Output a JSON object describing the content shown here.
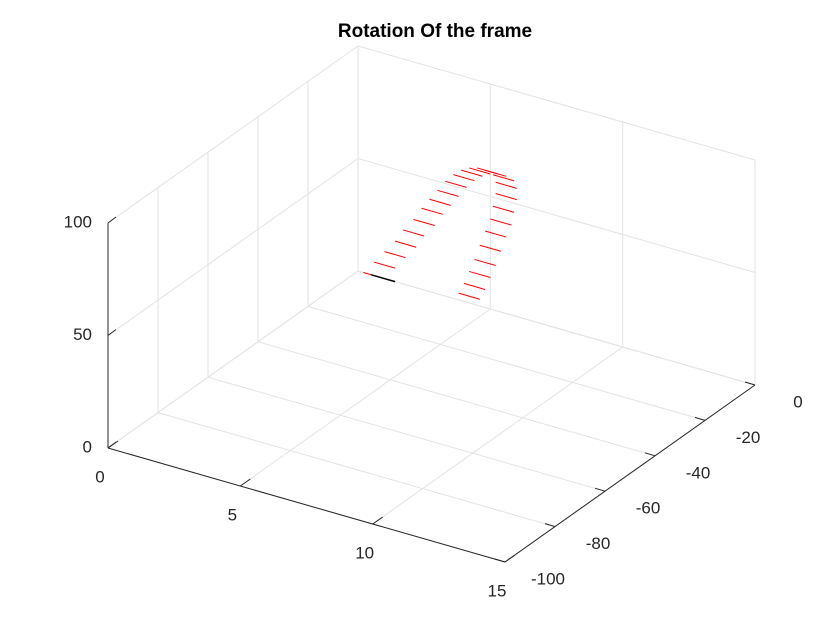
{
  "chart_data": {
    "type": "quiver3",
    "title": "Rotation Of the frame",
    "xlim": [
      0,
      15
    ],
    "ylim": [
      -100,
      0
    ],
    "zlim": [
      0,
      100
    ],
    "xticks": [
      0,
      5,
      10,
      15
    ],
    "yticks": [
      -100,
      -80,
      -60,
      -40,
      -20,
      0
    ],
    "zticks": [
      0,
      50,
      100
    ],
    "grid": true,
    "series": [
      {
        "color": "#ff0000",
        "x": [
          1.0,
          1.4,
          1.8,
          2.2,
          2.5,
          2.9,
          3.2,
          3.5,
          3.8,
          4.1,
          4.4,
          4.7,
          5.0,
          5.3,
          5.6,
          5.9,
          6.0,
          6.0,
          5.9,
          5.8,
          5.6,
          5.4,
          5.2,
          5.0,
          4.8,
          4.6
        ],
        "y": [
          0,
          0,
          0,
          0,
          0,
          0,
          0,
          0,
          0,
          0,
          0,
          0,
          0,
          0,
          0,
          0,
          0,
          0,
          0,
          0,
          0,
          0,
          0,
          0,
          0,
          0
        ],
        "z": [
          0,
          6,
          12,
          18,
          24,
          30,
          36,
          41,
          46,
          51,
          55,
          58,
          60,
          61,
          61,
          60,
          57,
          52,
          46,
          40,
          34,
          27,
          20,
          14,
          8,
          3
        ],
        "u": [
          -0.8,
          -0.8,
          -0.8,
          -0.8,
          -0.8,
          -0.8,
          -0.8,
          -0.8,
          -0.8,
          -0.8,
          -0.8,
          -0.8,
          -0.8,
          -0.8,
          -0.8,
          -0.8,
          -0.8,
          -0.8,
          -0.8,
          -0.8,
          -0.8,
          -0.8,
          -0.8,
          -0.8,
          -0.8,
          -0.8
        ],
        "v": [
          0,
          0,
          0,
          0,
          0,
          0,
          0,
          0,
          0,
          0,
          0,
          0,
          0,
          0,
          0,
          0,
          0,
          0,
          0,
          0,
          0,
          0,
          0,
          0,
          0,
          0
        ],
        "w": [
          0,
          0,
          0,
          0,
          0,
          0,
          0,
          0,
          0,
          0,
          0,
          0,
          0,
          0,
          0,
          0,
          0,
          0,
          0,
          0,
          0,
          0,
          0,
          0,
          0,
          0
        ]
      }
    ],
    "lines": [
      {
        "color": "#000000",
        "x": [
          0.5,
          1.4
        ],
        "y": [
          0,
          0
        ],
        "z": [
          0,
          0
        ]
      }
    ]
  }
}
